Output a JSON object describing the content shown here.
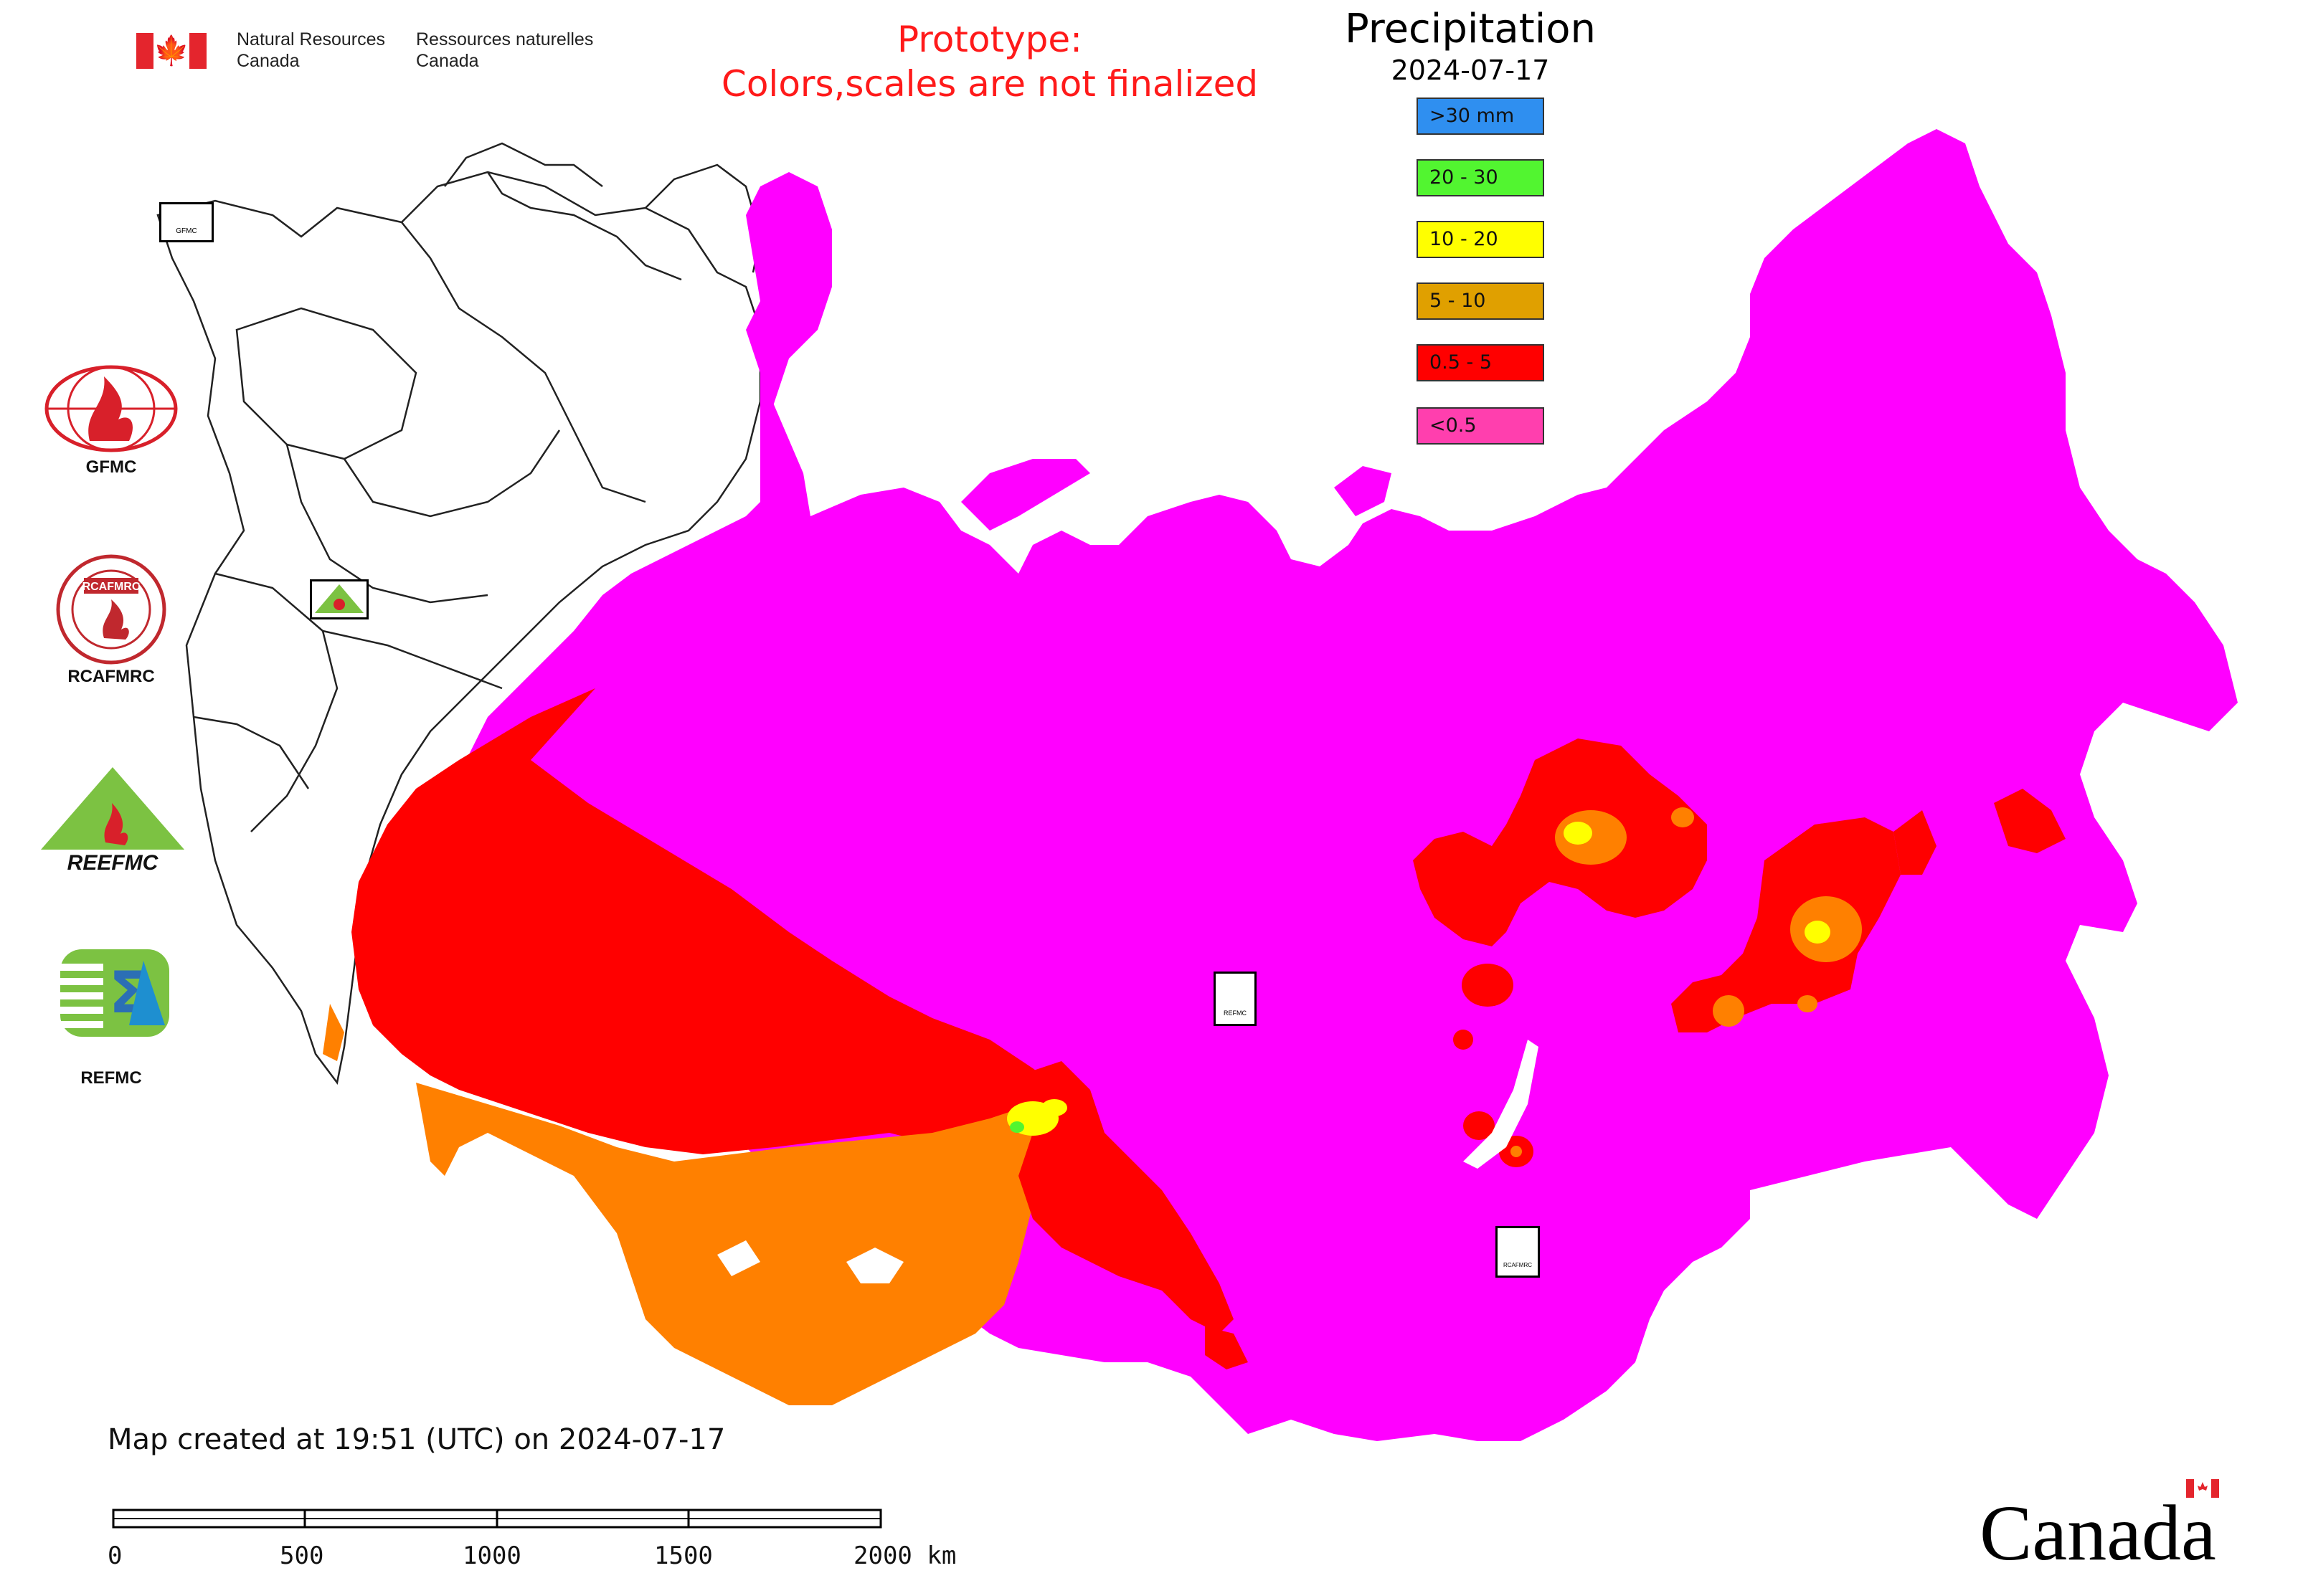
{
  "header": {
    "gc_en_line1": "Natural Resources",
    "gc_en_line2": "Canada",
    "gc_fr_line1": "Ressources naturelles",
    "gc_fr_line2": "Canada",
    "prototype_line1": "Prototype:",
    "prototype_line2": "Colors,scales are not finalized"
  },
  "legend": {
    "title": "Precipitation",
    "date": "2024-07-17",
    "items": [
      {
        "label": ">30 mm",
        "color": "#2f8ff0"
      },
      {
        "label": "20 - 30",
        "color": "#52f530"
      },
      {
        "label": "10 - 20",
        "color": "#ffff00"
      },
      {
        "label": "5 - 10",
        "color": "#e0a000"
      },
      {
        "label": "0.5 - 5",
        "color": "#ff0000"
      },
      {
        "label": "<0.5",
        "color": "#ff3fae"
      }
    ]
  },
  "map_colors": {
    "lt_0_5": "#ff00ff",
    "r_0_5_5": "#ff0000",
    "r_5_10": "#ff8000",
    "r_10_20": "#ffff00",
    "r_20_30": "#52f530",
    "background": "#ffffff"
  },
  "side_logos": {
    "gfmc": "GFMC",
    "rcafmrc": "RCAFMRC",
    "reefmc_logo_text": "REEFMC",
    "refmc": "REFMC"
  },
  "map_markers": {
    "gfmc_small": "GFMC",
    "refmc_small": "REFMC",
    "rcafmrc_small": "RCAFMRC"
  },
  "footer": {
    "created": "Map created at 19:51 (UTC) on 2024-07-17"
  },
  "scale_bar": {
    "labels": [
      "0",
      "500",
      "1000",
      "1500",
      "2000 km"
    ]
  },
  "wordmark": "Canada"
}
